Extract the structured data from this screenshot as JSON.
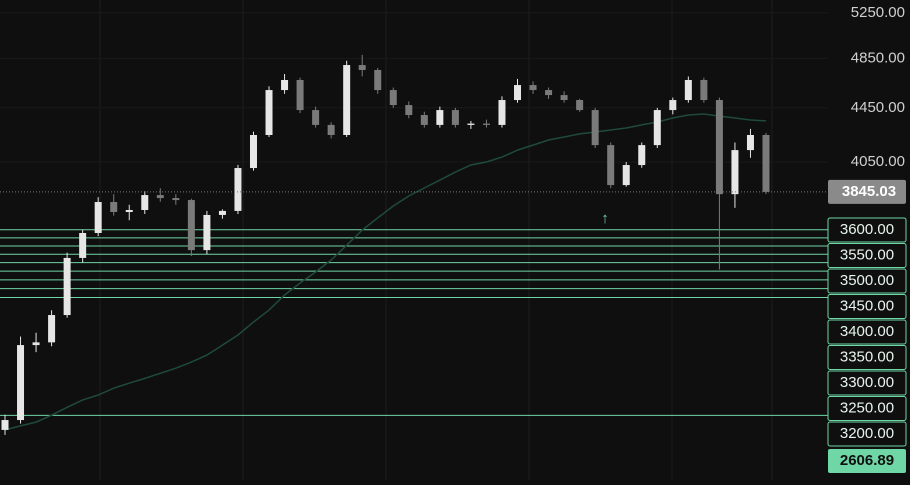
{
  "chart_data": {
    "type": "candlestick",
    "log_scale": true,
    "ylim": [
      2330,
      5368
    ],
    "yticks": [
      {
        "value": 4050,
        "label": "4050.00"
      },
      {
        "value": 4450,
        "label": "4450.00"
      },
      {
        "value": 4850,
        "label": "4850.00"
      },
      {
        "value": 5250,
        "label": "5250.00"
      }
    ],
    "up_color": "#e6e6e6",
    "down_color": "#7a7a7a",
    "open": [
      2542,
      2586,
      2946,
      2960,
      3104,
      3428,
      3580,
      3778,
      3713,
      3726,
      3824,
      3804,
      3791,
      3475,
      3694,
      3720,
      4008,
      4245,
      4590,
      4671,
      4433,
      4320,
      4245,
      4794,
      4753,
      4590,
      4472,
      4395,
      4320,
      4433,
      4320,
      4330,
      4320,
      4511,
      4630,
      4590,
      4550,
      4511,
      4433,
      4171,
      3891,
      4029,
      4171,
      4433,
      4511,
      4671,
      4511,
      3830,
      4135,
      4245
    ],
    "high": [
      2610,
      2990,
      3010,
      3130,
      3460,
      3600,
      3810,
      3830,
      3760,
      3850,
      3870,
      3830,
      3800,
      3720,
      3730,
      4030,
      4270,
      4620,
      4720,
      4690,
      4460,
      4340,
      4830,
      4880,
      4770,
      4610,
      4500,
      4420,
      4460,
      4450,
      4350,
      4360,
      4540,
      4680,
      4660,
      4610,
      4580,
      4520,
      4450,
      4190,
      4050,
      4190,
      4450,
      4530,
      4700,
      4690,
      4530,
      4190,
      4290,
      4260
    ],
    "low": [
      2520,
      2570,
      2910,
      2940,
      3090,
      3400,
      3560,
      3690,
      3660,
      3700,
      3780,
      3760,
      3440,
      3450,
      3670,
      3700,
      3990,
      4230,
      4560,
      4410,
      4300,
      4220,
      4230,
      4700,
      4560,
      4450,
      4370,
      4300,
      4300,
      4300,
      4290,
      4300,
      4300,
      4490,
      4560,
      4520,
      4490,
      4420,
      4150,
      3870,
      3880,
      4010,
      4150,
      4400,
      4490,
      4490,
      3360,
      3740,
      4080,
      3830
    ],
    "close": [
      2586,
      2946,
      2960,
      3104,
      3428,
      3580,
      3778,
      3713,
      3726,
      3824,
      3804,
      3791,
      3475,
      3694,
      3720,
      4008,
      4245,
      4590,
      4671,
      4433,
      4320,
      4245,
      4794,
      4753,
      4590,
      4472,
      4395,
      4320,
      4433,
      4320,
      4330,
      4320,
      4511,
      4630,
      4590,
      4550,
      4511,
      4433,
      4171,
      3891,
      4029,
      4171,
      4433,
      4511,
      4671,
      4511,
      3830,
      4135,
      4245,
      3845.03
    ],
    "moving_average": {
      "color": "#1f4a3c",
      "values": [
        2542,
        2560,
        2577,
        2608,
        2644,
        2678,
        2701,
        2733,
        2757,
        2780,
        2805,
        2830,
        2860,
        2895,
        2946,
        2998,
        3066,
        3131,
        3214,
        3282,
        3345,
        3416,
        3505,
        3598,
        3675,
        3752,
        3818,
        3871,
        3925,
        3980,
        4029,
        4050,
        4085,
        4135,
        4171,
        4208,
        4230,
        4253,
        4267,
        4282,
        4297,
        4320,
        4342,
        4372,
        4395,
        4403,
        4387,
        4372,
        4357,
        4350
      ]
    },
    "last_price": 3845.03,
    "level_color": "#6fd6a6",
    "levels": [
      {
        "value": 3600,
        "label": "3600.00"
      },
      {
        "value": 3550,
        "label": "3550.00"
      },
      {
        "value": 3500,
        "label": "3500.00"
      },
      {
        "value": 3450,
        "label": "3450.00"
      },
      {
        "value": 3400,
        "label": "3400.00"
      },
      {
        "value": 3350,
        "label": "3350.00"
      },
      {
        "value": 3300,
        "label": "3300.00"
      },
      {
        "value": 3250,
        "label": "3250.00"
      },
      {
        "value": 3200,
        "label": "3200.00"
      }
    ],
    "alert_level": 2606.89,
    "annotation": "↑"
  }
}
